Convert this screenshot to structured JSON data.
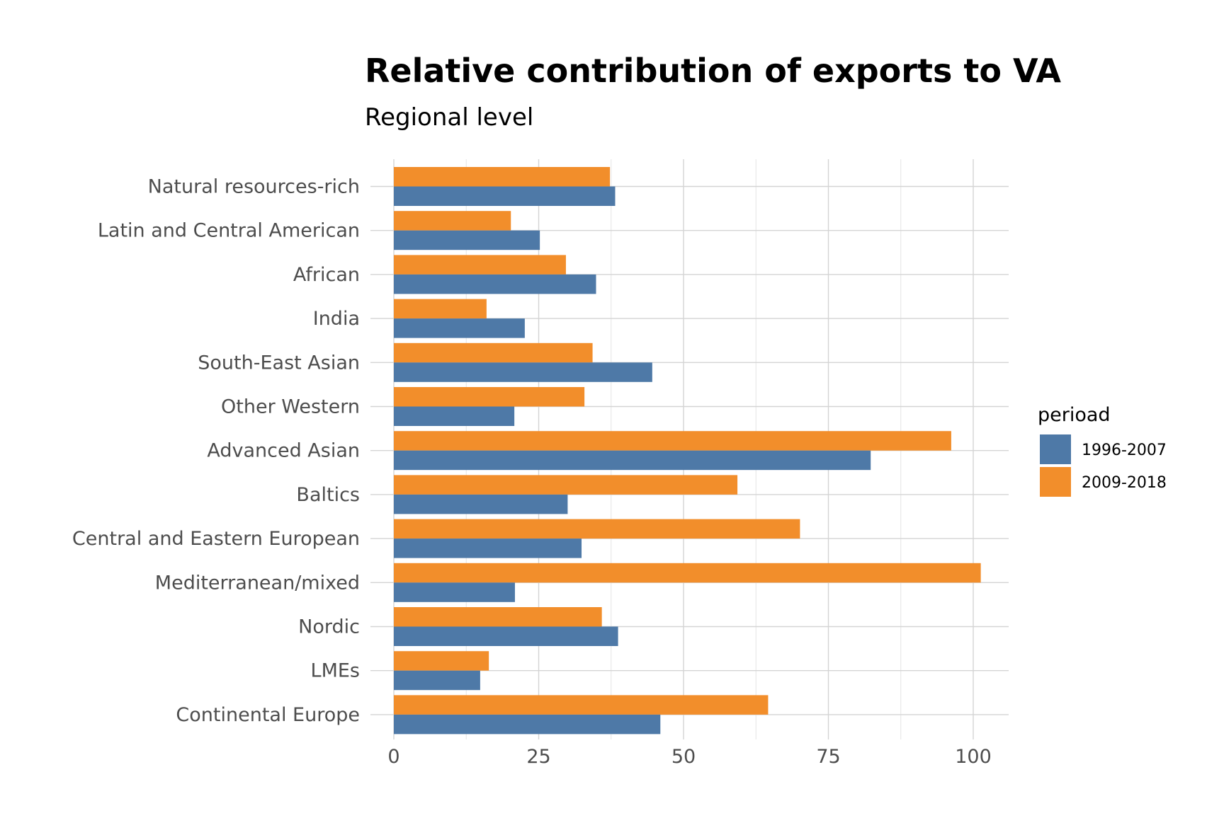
{
  "chart_data": {
    "type": "bar",
    "orientation": "horizontal",
    "title": "Relative contribution of exports to VA",
    "subtitle": "Regional level",
    "xlabel": "",
    "ylabel": "",
    "xlim": [
      -2.5,
      106
    ],
    "xticks": [
      0,
      25,
      50,
      75,
      100
    ],
    "xtick_labels": [
      "0",
      "25",
      "50",
      "75",
      "100"
    ],
    "grid": true,
    "legend": {
      "title": "perioad",
      "placement": "right",
      "entries": [
        "1996-2007",
        "2009-2018"
      ]
    },
    "categories": [
      "Natural resources-rich",
      "Latin and Central American",
      "African",
      "India",
      "South-East Asian",
      "Other Western",
      "Advanced Asian",
      "Baltics",
      "Central and Eastern European",
      "Mediterranean/mixed",
      "Nordic",
      "LMEs",
      "Continental Europe"
    ],
    "series": [
      {
        "name": "1996-2007",
        "color": "#4e79a7",
        "values": [
          38.2,
          25.2,
          34.9,
          22.6,
          44.6,
          20.8,
          82.3,
          30.0,
          32.4,
          20.9,
          38.7,
          14.9,
          46.0
        ]
      },
      {
        "name": "2009-2018",
        "color": "#f28e2b",
        "values": [
          37.3,
          20.2,
          29.7,
          16.0,
          34.3,
          32.9,
          96.2,
          59.3,
          70.1,
          101.3,
          35.9,
          16.4,
          64.6
        ]
      }
    ]
  }
}
